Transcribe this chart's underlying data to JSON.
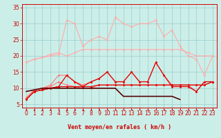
{
  "background_color": "#cceee8",
  "grid_color": "#99cccc",
  "xlabel": "Vent moyen/en rafales ( km/h )",
  "xlabel_color": "#cc0000",
  "xlabel_fontsize": 6,
  "tick_color": "#cc0000",
  "tick_fontsize": 5.5,
  "ylim": [
    4,
    36
  ],
  "yticks": [
    5,
    10,
    15,
    20,
    25,
    30,
    35
  ],
  "series": [
    {
      "color": "#ffaaaa",
      "linewidth": 0.8,
      "marker": "D",
      "markersize": 1.5,
      "data": [
        18,
        19,
        19.5,
        20,
        20.5,
        31,
        30,
        23,
        25,
        26,
        25,
        32,
        30,
        29,
        30,
        30,
        31,
        26,
        28,
        23,
        20,
        19,
        14,
        20
      ]
    },
    {
      "color": "#ffaaaa",
      "linewidth": 0.8,
      "marker": "D",
      "markersize": 1.5,
      "data": [
        18,
        19,
        19.5,
        20.5,
        21,
        20,
        21,
        22,
        22,
        22,
        22,
        22,
        22,
        22,
        22,
        22,
        22,
        22,
        22,
        22,
        21,
        20,
        20,
        20
      ]
    },
    {
      "color": "#ff7777",
      "linewidth": 0.8,
      "marker": "D",
      "markersize": 1.5,
      "data": [
        7,
        9.5,
        10,
        11,
        14,
        14,
        12,
        11,
        12,
        13,
        15,
        12,
        12,
        15,
        12,
        12,
        18,
        14,
        11,
        11,
        11,
        9,
        12,
        12
      ]
    },
    {
      "color": "#ff7777",
      "linewidth": 0.8,
      "marker": "D",
      "markersize": 1.5,
      "data": [
        7,
        9.5,
        10,
        10.5,
        12,
        11,
        10.5,
        10,
        10,
        11,
        11,
        11,
        11,
        11,
        11,
        11,
        11,
        11,
        11,
        11,
        11,
        11,
        11,
        12
      ]
    },
    {
      "color": "#dd0000",
      "linewidth": 0.9,
      "marker": "D",
      "markersize": 1.5,
      "data": [
        6.5,
        9,
        9.5,
        10,
        10.5,
        14,
        12,
        10.5,
        12,
        13,
        15,
        12,
        12,
        15,
        12,
        12,
        18,
        14,
        10.5,
        10.5,
        10.5,
        9,
        12,
        12
      ]
    },
    {
      "color": "#dd0000",
      "linewidth": 0.9,
      "marker": "D",
      "markersize": 1.5,
      "data": [
        6.5,
        9,
        9.5,
        10,
        10.5,
        10.5,
        10.5,
        10.5,
        10.5,
        11,
        11,
        11,
        11,
        11,
        11,
        11,
        11,
        11,
        11,
        11,
        11,
        11,
        11,
        12
      ]
    },
    {
      "color": "#550000",
      "linewidth": 1.2,
      "marker": null,
      "markersize": 0,
      "data": [
        9,
        9.5,
        10,
        10,
        10,
        10,
        10,
        10,
        10,
        10,
        10,
        10,
        7.5,
        7.5,
        7.5,
        7.5,
        7.5,
        7.5,
        7.5,
        6.5,
        null,
        null,
        null,
        null
      ]
    }
  ]
}
